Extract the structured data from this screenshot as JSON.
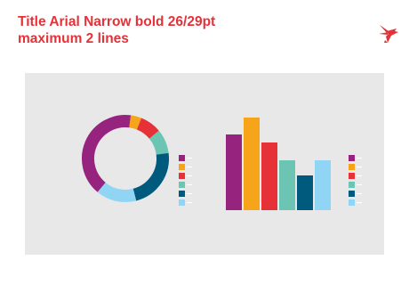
{
  "title": {
    "line1": "Title Arial Narrow bold 26/29pt",
    "line2": "maximum 2 lines"
  },
  "colors": {
    "purple": "#96247f",
    "orange": "#f6a51a",
    "red": "#e63138",
    "teal": "#6cc4b2",
    "navy": "#005a7e",
    "lightblue": "#91d5f5",
    "panel": "#e8e8e8",
    "title": "#e63138"
  },
  "logo": {
    "icon": "bird-logo-icon"
  },
  "chart_data": [
    {
      "type": "pie",
      "style": "donut",
      "values": [
        41,
        4,
        8,
        9,
        23,
        15
      ],
      "colors": [
        "#96247f",
        "#f6a51a",
        "#e63138",
        "#6cc4b2",
        "#005a7e",
        "#91d5f5"
      ],
      "legend": "right"
    },
    {
      "type": "bar",
      "values": [
        85,
        104,
        76,
        56,
        39,
        56
      ],
      "colors": [
        "#96247f",
        "#f6a51a",
        "#e63138",
        "#6cc4b2",
        "#005a7e",
        "#91d5f5"
      ],
      "ylim": [
        0,
        104
      ],
      "legend": "right",
      "grid": false
    }
  ]
}
